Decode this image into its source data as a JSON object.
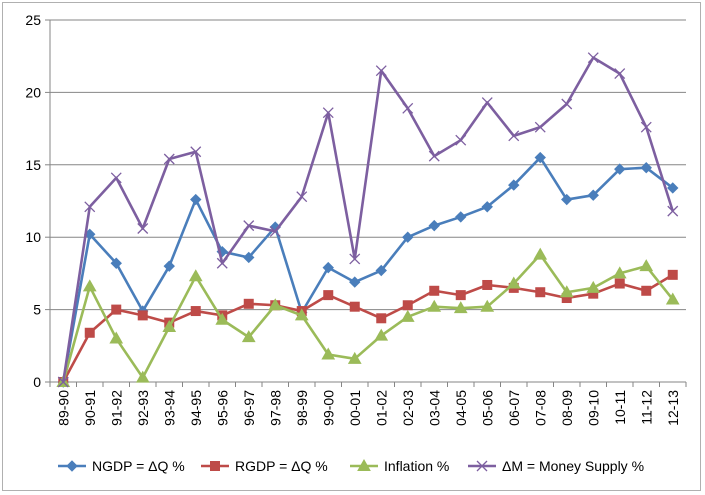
{
  "chart_data": {
    "type": "line",
    "title": "",
    "xlabel": "",
    "ylabel": "",
    "ylim": [
      0,
      25
    ],
    "yticks": [
      0,
      5,
      10,
      15,
      20,
      25
    ],
    "grid": "horizontal",
    "legend_position": "bottom",
    "categories": [
      "89-90",
      "90-91",
      "91-92",
      "92-93",
      "93-94",
      "94-95",
      "95-96",
      "96-97",
      "97-98",
      "98-99",
      "99-00",
      "00-01",
      "01-02",
      "02-03",
      "03-04",
      "04-05",
      "05-06",
      "06-07",
      "07-08",
      "08-09",
      "09-10",
      "10-11",
      "11-12",
      "12-13"
    ],
    "series": [
      {
        "name": "NGDP = ΔQ  %",
        "color": "#4a7ebb",
        "marker": "diamond",
        "values": [
          0,
          10.2,
          8.2,
          4.9,
          8.0,
          12.6,
          9.0,
          8.6,
          10.7,
          4.8,
          7.9,
          6.9,
          7.7,
          10.0,
          10.8,
          11.4,
          12.1,
          13.6,
          15.5,
          12.6,
          12.9,
          14.7,
          14.8,
          13.4
        ]
      },
      {
        "name": "RGDP = ΔQ  %",
        "color": "#be4b48",
        "marker": "square",
        "values": [
          0,
          3.4,
          5.0,
          4.6,
          4.1,
          4.9,
          4.6,
          5.4,
          5.3,
          4.9,
          6.0,
          5.2,
          4.4,
          5.3,
          6.3,
          6.0,
          6.7,
          6.5,
          6.2,
          5.8,
          6.1,
          6.8,
          6.3,
          7.4
        ]
      },
      {
        "name": "Inflation %",
        "color": "#9bbb59",
        "marker": "triangle",
        "values": [
          0,
          6.6,
          3.0,
          0.3,
          3.8,
          7.3,
          4.3,
          3.1,
          5.3,
          4.6,
          1.9,
          1.6,
          3.2,
          4.5,
          5.2,
          5.1,
          5.2,
          6.8,
          8.8,
          6.2,
          6.5,
          7.5,
          8.0,
          5.7
        ]
      },
      {
        "name": "ΔM =  Money Supply %",
        "color": "#7d5fa0",
        "marker": "x",
        "values": [
          0,
          12.1,
          14.1,
          10.6,
          15.4,
          15.9,
          8.2,
          10.8,
          10.4,
          12.8,
          18.6,
          8.5,
          21.5,
          18.9,
          15.6,
          16.7,
          19.3,
          17.0,
          17.6,
          19.2,
          22.4,
          21.3,
          17.6,
          11.8
        ]
      }
    ]
  }
}
